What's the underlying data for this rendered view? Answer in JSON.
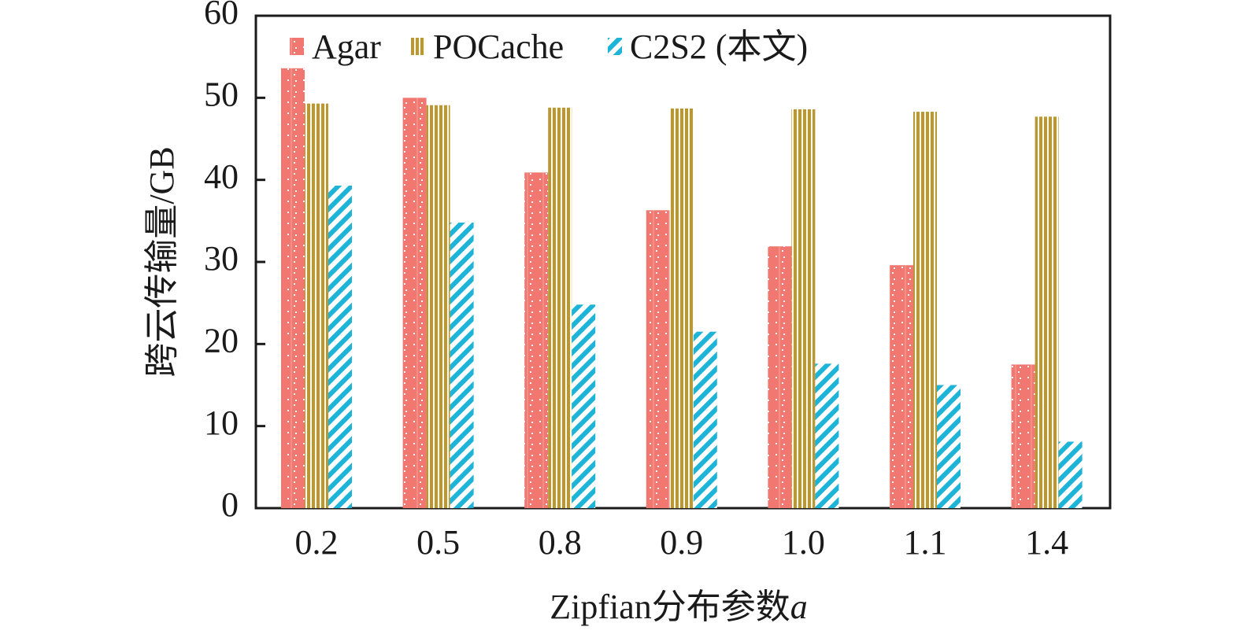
{
  "chart_data": {
    "type": "bar",
    "title": "",
    "xlabel": "Zipfian分布参数",
    "xlabel_italic_suffix": "a",
    "ylabel": "跨云传输量/GB",
    "ylim": [
      0,
      60
    ],
    "yticks": [
      0,
      10,
      20,
      30,
      40,
      50,
      60
    ],
    "categories": [
      "0.2",
      "0.5",
      "0.8",
      "0.9",
      "1.0",
      "1.1",
      "1.4"
    ],
    "series": [
      {
        "name": "Agar",
        "color": "#F07870",
        "pattern": "dots",
        "values": [
          53.6,
          50.0,
          40.9,
          36.3,
          31.9,
          29.6,
          17.5
        ]
      },
      {
        "name": "POCache",
        "color": "#B8963A",
        "pattern": "vertical-stripes",
        "values": [
          49.3,
          49.1,
          48.8,
          48.7,
          48.6,
          48.3,
          47.7
        ]
      },
      {
        "name": "C2S2 (本文)",
        "color": "#1EB4D8",
        "pattern": "diagonal-stripes",
        "values": [
          39.3,
          34.8,
          24.8,
          21.5,
          17.6,
          15.0,
          8.1
        ]
      }
    ],
    "legend": {
      "position": "top-left",
      "orientation": "horizontal"
    },
    "grid": false
  }
}
